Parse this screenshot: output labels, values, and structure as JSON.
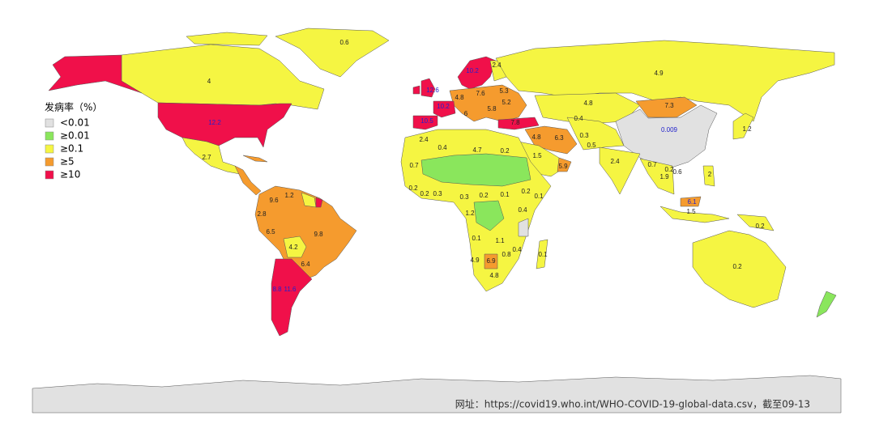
{
  "legend": {
    "title": "发病率（%）",
    "items": [
      {
        "label": "<0.01",
        "color": "#e1e1e1"
      },
      {
        "label": "≥0.01",
        "color": "#8ae65c"
      },
      {
        "label": "≥0.1",
        "color": "#f5f542"
      },
      {
        "label": "≥5",
        "color": "#f59b2e"
      },
      {
        "label": "≥10",
        "color": "#f0104a"
      }
    ]
  },
  "map_labels": [
    {
      "value": 0.6,
      "color": "#222222"
    },
    {
      "value": 4,
      "color": "#222222"
    },
    {
      "value": 12.2,
      "color": "#2222cc"
    },
    {
      "value": 2.7,
      "color": "#222222"
    },
    {
      "value": 4.9,
      "color": "#222222"
    },
    {
      "value": 2.4,
      "color": "#222222"
    },
    {
      "value": 10.2,
      "color": "#2222cc"
    },
    {
      "value": 12.6,
      "color": "#2222cc"
    },
    {
      "value": 4.8,
      "color": "#222222"
    },
    {
      "value": 7.6,
      "color": "#222222"
    },
    {
      "value": 5.3,
      "color": "#222222"
    },
    {
      "value": 5.2,
      "color": "#222222"
    },
    {
      "value": 10.2,
      "color": "#2222cc"
    },
    {
      "value": 5.8,
      "color": "#222222"
    },
    {
      "value": 6,
      "color": "#222222"
    },
    {
      "value": 10.5,
      "color": "#2222cc"
    },
    {
      "value": 7.8,
      "color": "#222222"
    },
    {
      "value": 4.8,
      "color": "#222222"
    },
    {
      "value": 7.3,
      "color": "#222222"
    },
    {
      "value": 0.4,
      "color": "#222222"
    },
    {
      "value": 0.009,
      "color": "#2222cc"
    },
    {
      "value": 1.2,
      "color": "#222222"
    },
    {
      "value": 4.8,
      "color": "#222222"
    },
    {
      "value": 6.3,
      "color": "#222222"
    },
    {
      "value": 0.3,
      "color": "#222222"
    },
    {
      "value": 0.5,
      "color": "#222222"
    },
    {
      "value": 2.4,
      "color": "#222222"
    },
    {
      "value": 1.5,
      "color": "#222222"
    },
    {
      "value": 5.9,
      "color": "#222222"
    },
    {
      "value": 2.4,
      "color": "#222222"
    },
    {
      "value": 0.4,
      "color": "#222222"
    },
    {
      "value": 4.7,
      "color": "#222222"
    },
    {
      "value": 0.2,
      "color": "#222222"
    },
    {
      "value": 0.7,
      "color": "#222222"
    },
    {
      "value": 0.2,
      "color": "#222222"
    },
    {
      "value": 0.2,
      "color": "#222222"
    },
    {
      "value": 0.3,
      "color": "#222222"
    },
    {
      "value": 0.3,
      "color": "#222222"
    },
    {
      "value": 0.2,
      "color": "#222222"
    },
    {
      "value": 0.1,
      "color": "#222222"
    },
    {
      "value": 0.2,
      "color": "#222222"
    },
    {
      "value": 0.1,
      "color": "#222222"
    },
    {
      "value": 1.2,
      "color": "#222222"
    },
    {
      "value": 0.4,
      "color": "#222222"
    },
    {
      "value": 0.1,
      "color": "#222222"
    },
    {
      "value": 1.1,
      "color": "#222222"
    },
    {
      "value": 0.8,
      "color": "#222222"
    },
    {
      "value": 0.4,
      "color": "#222222"
    },
    {
      "value": 0.1,
      "color": "#222222"
    },
    {
      "value": 4.9,
      "color": "#222222"
    },
    {
      "value": 6.9,
      "color": "#222222"
    },
    {
      "value": 4.8,
      "color": "#222222"
    },
    {
      "value": 9.6,
      "color": "#222222"
    },
    {
      "value": 1.2,
      "color": "#222222"
    },
    {
      "value": 2.8,
      "color": "#222222"
    },
    {
      "value": 6.5,
      "color": "#222222"
    },
    {
      "value": 9.8,
      "color": "#222222"
    },
    {
      "value": 4.2,
      "color": "#222222"
    },
    {
      "value": 6.4,
      "color": "#222222"
    },
    {
      "value": 8.8,
      "color": "#2222cc"
    },
    {
      "value": 11.6,
      "color": "#2222cc"
    },
    {
      "value": 0.7,
      "color": "#222222"
    },
    {
      "value": 0.2,
      "color": "#222222"
    },
    {
      "value": 1.9,
      "color": "#222222"
    },
    {
      "value": 0.6,
      "color": "#222222"
    },
    {
      "value": 2,
      "color": "#222222"
    },
    {
      "value": 6.1,
      "color": "#2222cc"
    },
    {
      "value": 1.5,
      "color": "#222222"
    },
    {
      "value": 0.2,
      "color": "#222222"
    },
    {
      "value": 0.2,
      "color": "#222222"
    }
  ],
  "source": "网址：https://covid19.who.int/WHO-COVID-19-global-data.csv，截至09-13"
}
